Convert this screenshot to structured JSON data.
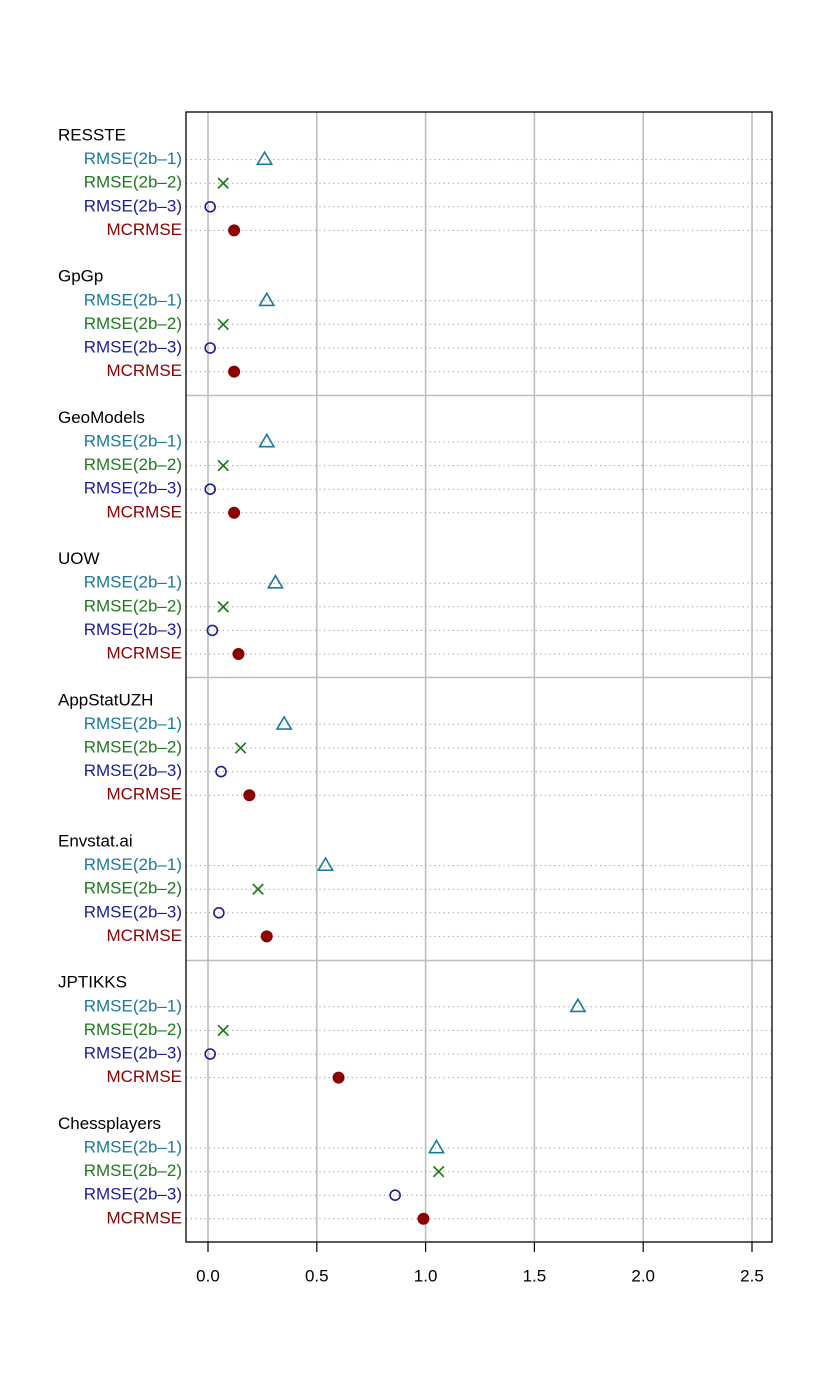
{
  "chart_data": {
    "type": "scatter",
    "title": "",
    "xlabel": "",
    "ylabel": "",
    "xlim": [
      -0.1,
      2.6
    ],
    "x_ticks": [
      0.0,
      0.5,
      1.0,
      1.5,
      2.0,
      2.5
    ],
    "x_tick_labels": [
      "0.0",
      "0.5",
      "1.0",
      "1.5",
      "2.0",
      "2.5"
    ],
    "grid": true,
    "legend": "none",
    "metrics": [
      {
        "label": "RMSE(2b–1)",
        "color": "#1a7a99",
        "marker": "triangle-open"
      },
      {
        "label": "RMSE(2b–2)",
        "color": "#1f7a1f",
        "marker": "x"
      },
      {
        "label": "RMSE(2b–3)",
        "color": "#1c1c99",
        "marker": "circle-open"
      },
      {
        "label": "MCRMSE",
        "color": "#8b0000",
        "marker": "circle-filled"
      }
    ],
    "groups": [
      {
        "name": "RESSTE",
        "values": [
          0.26,
          0.07,
          0.01,
          0.12
        ]
      },
      {
        "name": "GpGp",
        "values": [
          0.27,
          0.07,
          0.01,
          0.12
        ]
      },
      {
        "name": "GeoModels",
        "values": [
          0.27,
          0.07,
          0.01,
          0.12
        ]
      },
      {
        "name": "UOW",
        "values": [
          0.31,
          0.07,
          0.02,
          0.14
        ]
      },
      {
        "name": "AppStatUZH",
        "values": [
          0.35,
          0.15,
          0.06,
          0.19
        ]
      },
      {
        "name": "Envstat.ai",
        "values": [
          0.54,
          0.23,
          0.05,
          0.27
        ]
      },
      {
        "name": "JPTIKKS",
        "values": [
          1.7,
          0.07,
          0.01,
          0.6
        ]
      },
      {
        "name": "Chessplayers",
        "values": [
          1.05,
          1.06,
          0.86,
          0.99
        ]
      }
    ]
  }
}
